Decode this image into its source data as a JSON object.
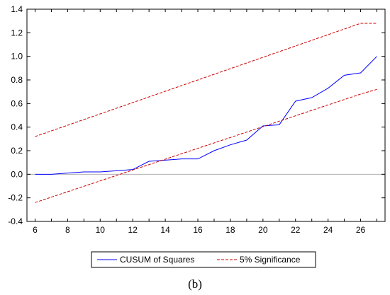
{
  "chart_data": {
    "type": "line",
    "x": [
      6,
      7,
      8,
      9,
      10,
      11,
      12,
      13,
      14,
      15,
      16,
      17,
      18,
      19,
      20,
      21,
      22,
      23,
      24,
      25,
      26,
      27
    ],
    "xlim": [
      5.5,
      27.5
    ],
    "x_ticks": [
      6,
      8,
      10,
      12,
      14,
      16,
      18,
      20,
      22,
      24,
      26
    ],
    "ylim": [
      -0.4,
      1.4
    ],
    "y_ticks": [
      -0.4,
      -0.2,
      0.0,
      0.2,
      0.4,
      0.6,
      0.8,
      1.0,
      1.2,
      1.4
    ],
    "y_tick_labels": [
      "-0.4",
      "-0.2",
      "0.0",
      "0.2",
      "0.4",
      "0.6",
      "0.8",
      "1.0",
      "1.2",
      "1.4"
    ],
    "grid": false,
    "zero_line": true,
    "series": [
      {
        "name": "CUSUM of Squares",
        "color": "#0000ff",
        "style": "solid",
        "values": [
          0.0,
          0.0,
          0.01,
          0.02,
          0.02,
          0.03,
          0.04,
          0.11,
          0.12,
          0.13,
          0.13,
          0.2,
          0.25,
          0.29,
          0.41,
          0.42,
          0.62,
          0.65,
          0.73,
          0.84,
          0.86,
          1.0
        ]
      },
      {
        "name": "5% Significance",
        "color": "#cc0000",
        "style": "dashed",
        "bands": [
          [
            0.32,
            0.368,
            0.416,
            0.464,
            0.512,
            0.56,
            0.608,
            0.656,
            0.704,
            0.752,
            0.8,
            0.848,
            0.896,
            0.944,
            0.992,
            1.04,
            1.088,
            1.136,
            1.184,
            1.232,
            1.28,
            1.28
          ],
          [
            -0.24,
            -0.194,
            -0.148,
            -0.102,
            -0.056,
            -0.01,
            0.036,
            0.082,
            0.128,
            0.174,
            0.22,
            0.266,
            0.312,
            0.358,
            0.404,
            0.45,
            0.496,
            0.542,
            0.588,
            0.634,
            0.68,
            0.72
          ]
        ]
      }
    ],
    "legend_position": "bottom"
  },
  "caption": "(b)"
}
